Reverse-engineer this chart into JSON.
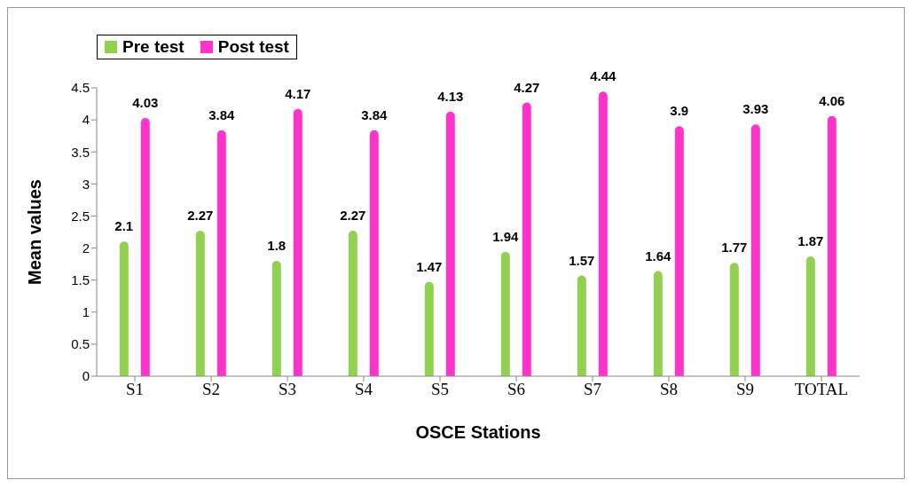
{
  "chart_data": {
    "type": "bar",
    "xlabel": "OSCE Stations",
    "ylabel": "Mean values",
    "categories": [
      "S1",
      "S2",
      "S3",
      "S4",
      "S5",
      "S6",
      "S7",
      "S8",
      "S9",
      "TOTAL"
    ],
    "series": [
      {
        "name": "Pre test",
        "color": "#92d050",
        "values": [
          2.1,
          2.27,
          1.8,
          2.27,
          1.47,
          1.94,
          1.57,
          1.64,
          1.77,
          1.87
        ]
      },
      {
        "name": "Post test",
        "color": "#ff33cc",
        "values": [
          4.03,
          3.84,
          4.17,
          3.84,
          4.13,
          4.27,
          4.44,
          3.9,
          3.93,
          4.06
        ]
      }
    ],
    "ylim": [
      0,
      4.5
    ],
    "yticks": [
      0,
      0.5,
      1,
      1.5,
      2,
      2.5,
      3,
      3.5,
      4,
      4.5
    ],
    "data_labels": true,
    "legend": "top left"
  }
}
